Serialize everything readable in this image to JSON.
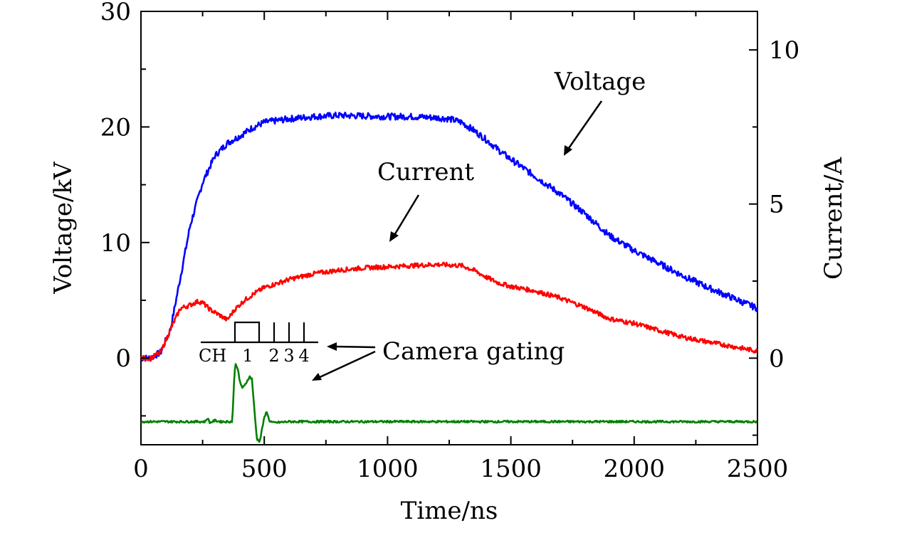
{
  "chart_data": {
    "type": "line",
    "xlabel": "Time/ns",
    "ylabel_left": "Voltage/kV",
    "ylabel_right": "Current/A",
    "xlim": [
      0,
      2500
    ],
    "ylim_left": [
      -7.5,
      30
    ],
    "ylim_right": [
      -2.81,
      11.25
    ],
    "x_ticks": [
      0,
      500,
      1000,
      1500,
      2000,
      2500
    ],
    "x_tick_labels": [
      "0",
      "500",
      "1000",
      "1500",
      "2000",
      "2500"
    ],
    "y_left_ticks": [
      0,
      10,
      20,
      30
    ],
    "y_left_tick_labels": [
      "0",
      "10",
      "20",
      "30"
    ],
    "y_right_ticks": [
      0,
      5,
      10
    ],
    "y_right_tick_labels": [
      "0",
      "5",
      "10"
    ],
    "series": [
      {
        "name": "Voltage",
        "axis": "left",
        "color": "#0000ff",
        "points": [
          [
            0,
            0
          ],
          [
            40,
            0
          ],
          [
            80,
            0.5
          ],
          [
            120,
            2.5
          ],
          [
            160,
            7
          ],
          [
            200,
            11.5
          ],
          [
            250,
            15.2
          ],
          [
            300,
            17.5
          ],
          [
            350,
            18.6
          ],
          [
            400,
            19.2
          ],
          [
            450,
            19.9
          ],
          [
            500,
            20.4
          ],
          [
            600,
            20.7
          ],
          [
            700,
            20.9
          ],
          [
            800,
            21.0
          ],
          [
            1000,
            20.9
          ],
          [
            1100,
            20.9
          ],
          [
            1200,
            20.8
          ],
          [
            1250,
            20.7
          ],
          [
            1300,
            20.4
          ],
          [
            1350,
            19.7
          ],
          [
            1400,
            18.9
          ],
          [
            1450,
            18.0
          ],
          [
            1500,
            17.2
          ],
          [
            1600,
            15.7
          ],
          [
            1700,
            14.2
          ],
          [
            1800,
            12.5
          ],
          [
            1900,
            10.6
          ],
          [
            2000,
            9.3
          ],
          [
            2100,
            8.2
          ],
          [
            2200,
            7.1
          ],
          [
            2300,
            6.1
          ],
          [
            2400,
            5.2
          ],
          [
            2500,
            4.3
          ]
        ]
      },
      {
        "name": "Current",
        "axis": "left",
        "color": "#ff0000",
        "points": [
          [
            0,
            0
          ],
          [
            40,
            0
          ],
          [
            80,
            0.5
          ],
          [
            120,
            2.5
          ],
          [
            160,
            4.3
          ],
          [
            200,
            4.6
          ],
          [
            230,
            4.9
          ],
          [
            250,
            4.8
          ],
          [
            280,
            4.2
          ],
          [
            320,
            3.7
          ],
          [
            350,
            3.3
          ],
          [
            380,
            4.2
          ],
          [
            420,
            5.0
          ],
          [
            460,
            5.6
          ],
          [
            500,
            6.1
          ],
          [
            600,
            6.8
          ],
          [
            700,
            7.3
          ],
          [
            800,
            7.6
          ],
          [
            900,
            7.8
          ],
          [
            1000,
            7.9
          ],
          [
            1100,
            8.0
          ],
          [
            1200,
            8.1
          ],
          [
            1300,
            8.0
          ],
          [
            1350,
            7.6
          ],
          [
            1400,
            7.0
          ],
          [
            1450,
            6.5
          ],
          [
            1500,
            6.2
          ],
          [
            1600,
            5.8
          ],
          [
            1700,
            5.2
          ],
          [
            1800,
            4.4
          ],
          [
            1900,
            3.4
          ],
          [
            2000,
            3.0
          ],
          [
            2100,
            2.4
          ],
          [
            2200,
            1.8
          ],
          [
            2300,
            1.4
          ],
          [
            2400,
            1.0
          ],
          [
            2500,
            0.6
          ]
        ]
      },
      {
        "name": "Camera gating",
        "axis": "left",
        "color": "#008000",
        "points": [
          [
            0,
            -5.5
          ],
          [
            260,
            -5.5
          ],
          [
            270,
            -5.2
          ],
          [
            280,
            -5.6
          ],
          [
            300,
            -5.4
          ],
          [
            320,
            -5.5
          ],
          [
            370,
            -5.5
          ],
          [
            378,
            -2.0
          ],
          [
            382,
            -0.5
          ],
          [
            392,
            -0.8
          ],
          [
            400,
            -2.0
          ],
          [
            412,
            -2.6
          ],
          [
            420,
            -2.4
          ],
          [
            440,
            -1.6
          ],
          [
            450,
            -1.8
          ],
          [
            460,
            -4.5
          ],
          [
            470,
            -7.0
          ],
          [
            482,
            -7.2
          ],
          [
            492,
            -6.0
          ],
          [
            500,
            -5.2
          ],
          [
            510,
            -4.6
          ],
          [
            520,
            -5.4
          ],
          [
            535,
            -5.6
          ],
          [
            600,
            -5.5
          ],
          [
            800,
            -5.5
          ],
          [
            1000,
            -5.5
          ],
          [
            1500,
            -5.5
          ],
          [
            2000,
            -5.5
          ],
          [
            2500,
            -5.5
          ]
        ]
      }
    ],
    "annotations": [
      {
        "label": "Voltage",
        "target": [
          1720,
          16.7
        ]
      },
      {
        "label": "Current",
        "target": [
          1000,
          9.5
        ]
      },
      {
        "label": "Camera gating",
        "target": [
          700,
          -2.5
        ]
      }
    ],
    "inset": {
      "label_ch": "CH",
      "channel_labels": [
        "1",
        "2",
        "3",
        "4"
      ]
    }
  }
}
